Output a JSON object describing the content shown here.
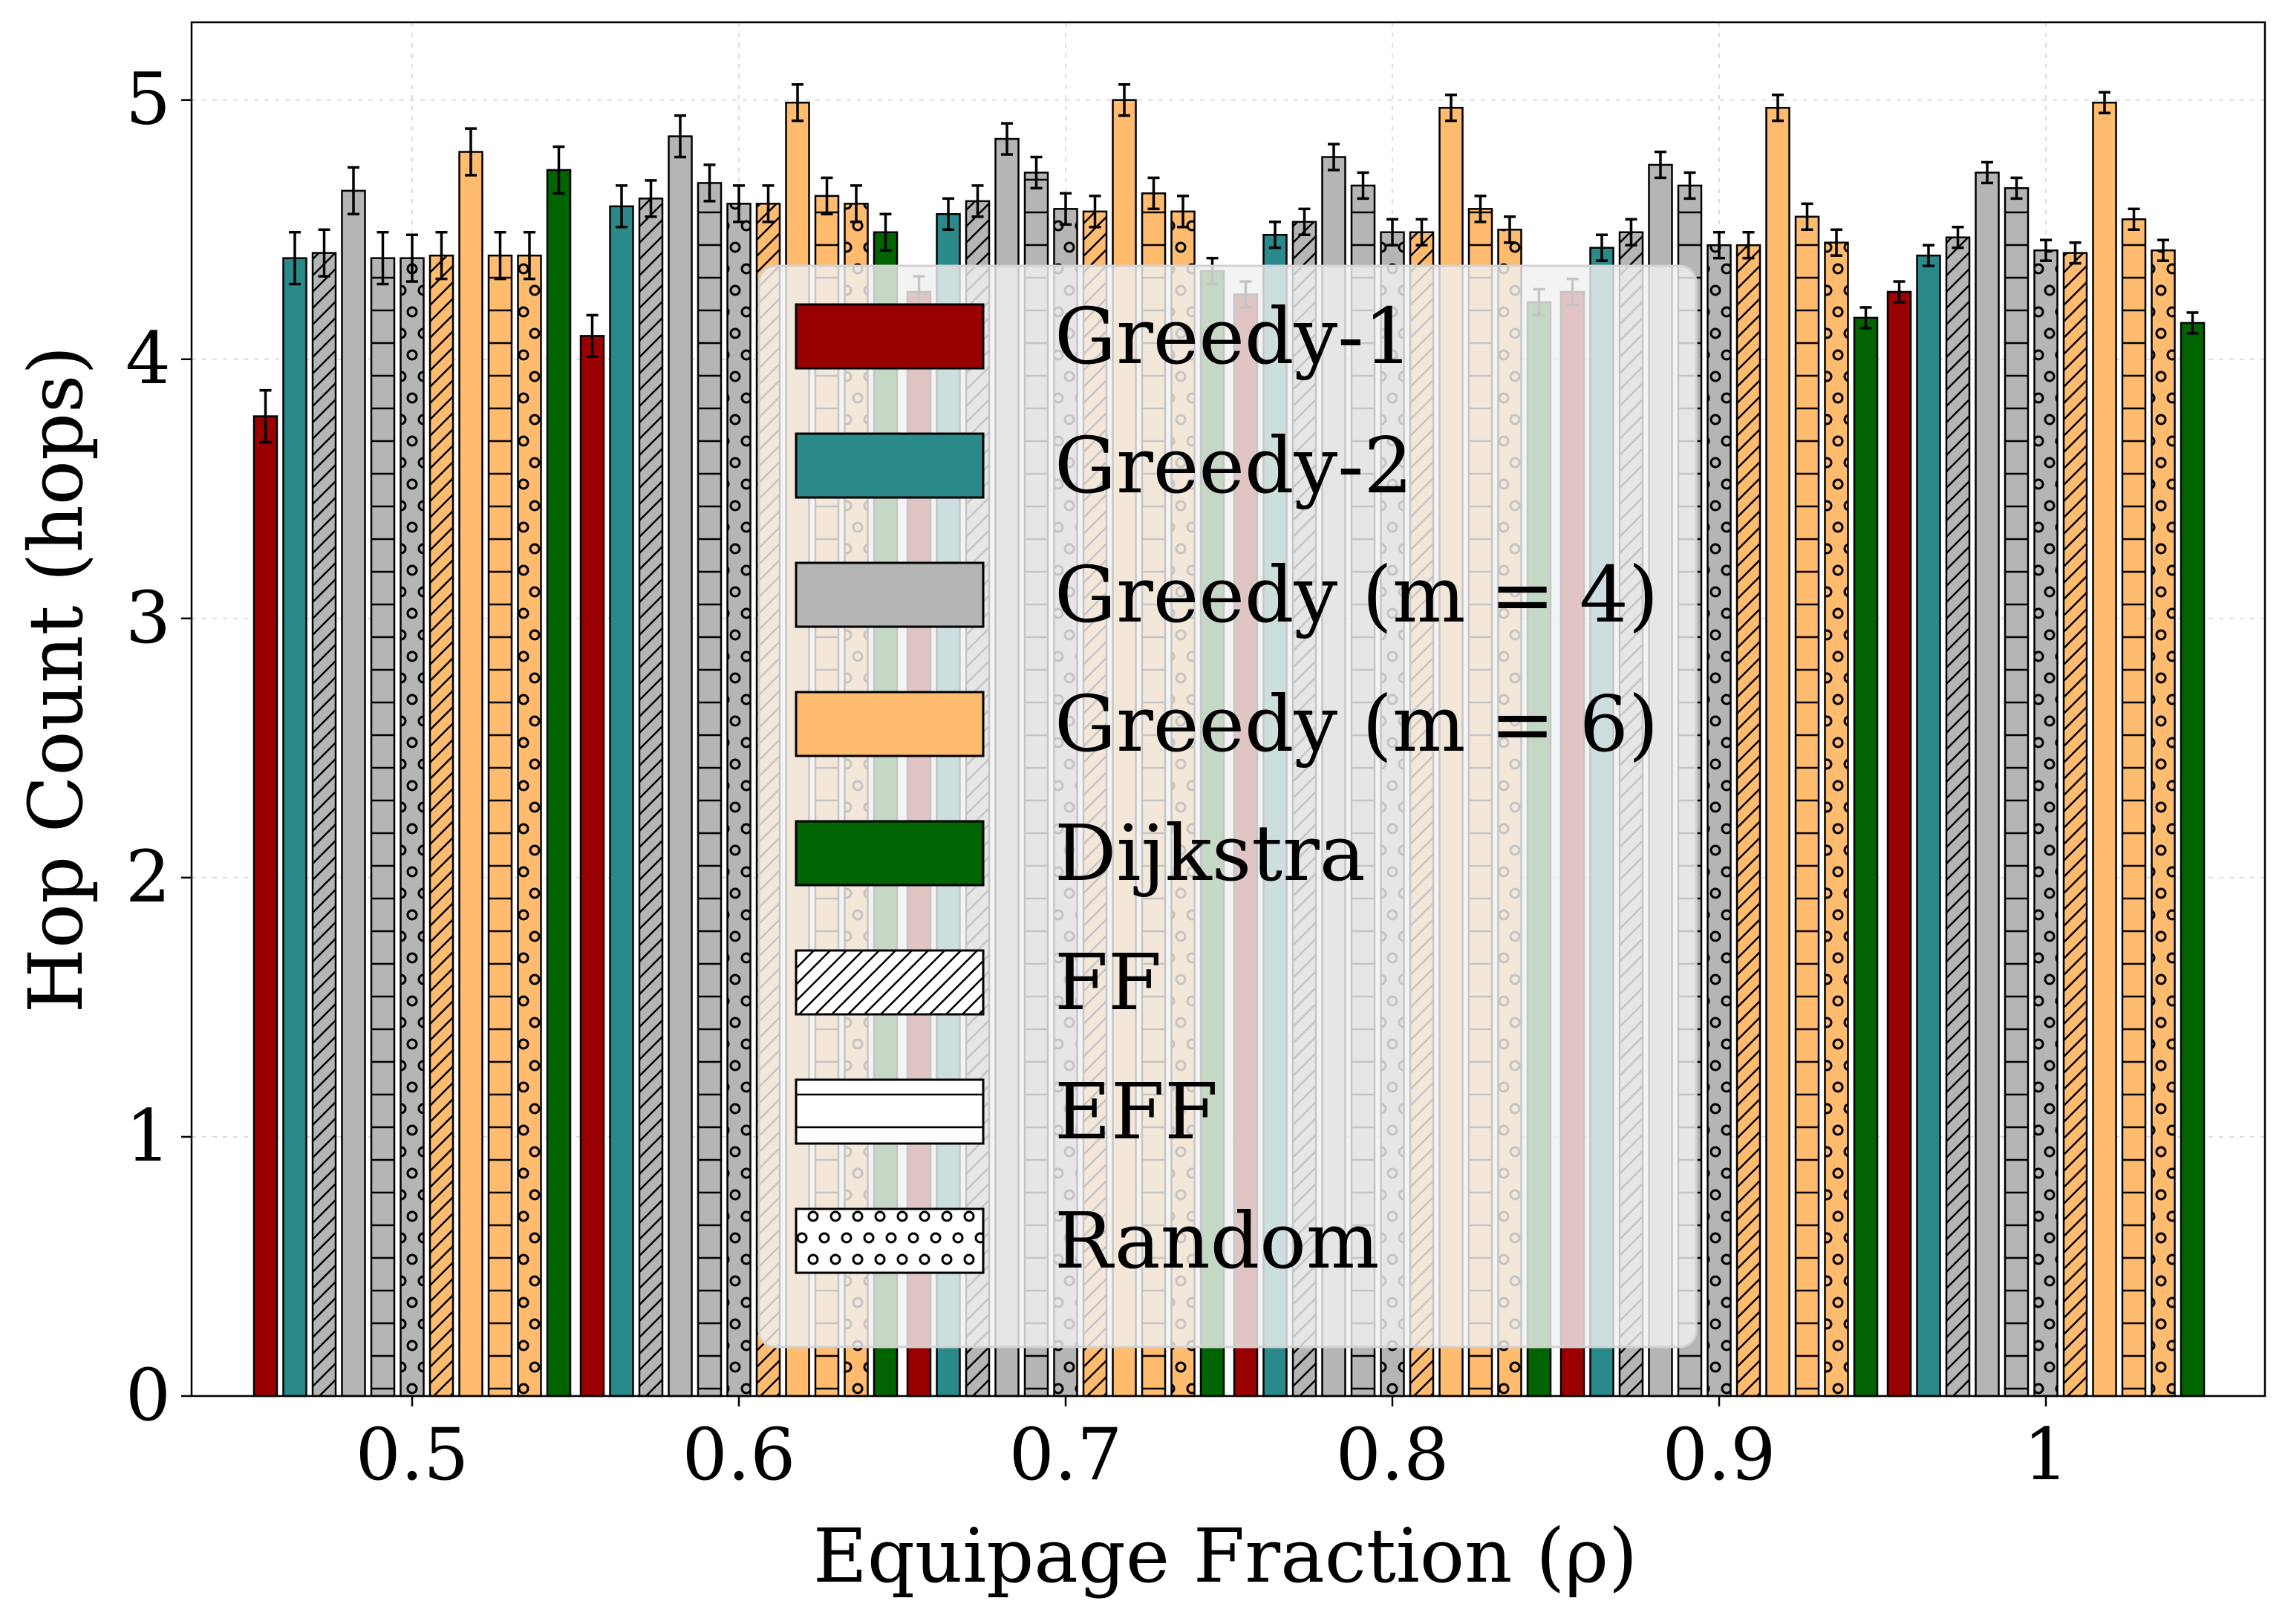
{
  "chart_data": {
    "type": "bar",
    "xlabel": "Equipage Fraction (ρ)",
    "ylabel": "Hop Count (hops)",
    "ylim": [
      0,
      5.3
    ],
    "yticks": [
      "0",
      "1",
      "2",
      "3",
      "4",
      "5"
    ],
    "categories": [
      "0.5",
      "0.6",
      "0.7",
      "0.8",
      "0.9",
      "1"
    ],
    "grid": true,
    "legend_position": "center",
    "legend": [
      {
        "label": "Greedy-1",
        "color": "#9b0000",
        "hatch": "none"
      },
      {
        "label": "Greedy-2",
        "color": "#2a8a8a",
        "hatch": "none"
      },
      {
        "label": "Greedy (m = 4)",
        "color": "#b5b5b5",
        "hatch": "none"
      },
      {
        "label": "Greedy (m = 6)",
        "color": "#ffbb6e",
        "hatch": "none"
      },
      {
        "label": "Dijkstra",
        "color": "#006400",
        "hatch": "none"
      },
      {
        "label": "FF",
        "color": "#ffffff",
        "hatch": "diag"
      },
      {
        "label": "EFF",
        "color": "#ffffff",
        "hatch": "horiz"
      },
      {
        "label": "Random",
        "color": "#ffffff",
        "hatch": "dots"
      }
    ],
    "series": [
      {
        "name": "Greedy-1",
        "color": "#9b0000",
        "hatch": "none",
        "values": [
          3.78,
          4.09,
          4.26,
          4.25,
          4.26,
          4.26
        ],
        "errors": [
          0.1,
          0.08,
          0.06,
          0.05,
          0.05,
          0.04
        ]
      },
      {
        "name": "Greedy-2",
        "color": "#2a8a8a",
        "hatch": "none",
        "values": [
          4.39,
          4.59,
          4.56,
          4.48,
          4.43,
          4.4
        ],
        "errors": [
          0.1,
          0.08,
          0.06,
          0.05,
          0.05,
          0.04
        ]
      },
      {
        "name": "Greedy-2, FF",
        "color": "#b5b5b5",
        "hatch": "diag",
        "values": [
          4.41,
          4.62,
          4.61,
          4.53,
          4.49,
          4.47
        ],
        "errors": [
          0.09,
          0.07,
          0.06,
          0.05,
          0.05,
          0.04
        ]
      },
      {
        "name": "Greedy (m = 4)",
        "color": "#b5b5b5",
        "hatch": "none",
        "values": [
          4.65,
          4.86,
          4.85,
          4.78,
          4.75,
          4.72
        ],
        "errors": [
          0.09,
          0.08,
          0.06,
          0.05,
          0.05,
          0.04
        ]
      },
      {
        "name": "Greedy (m = 4), EFF",
        "color": "#b5b5b5",
        "hatch": "horiz",
        "values": [
          4.39,
          4.68,
          4.72,
          4.67,
          4.67,
          4.66
        ],
        "errors": [
          0.1,
          0.07,
          0.06,
          0.05,
          0.05,
          0.04
        ]
      },
      {
        "name": "Greedy (m = 4), Random",
        "color": "#b5b5b5",
        "hatch": "dots",
        "values": [
          4.39,
          4.6,
          4.58,
          4.49,
          4.44,
          4.42
        ],
        "errors": [
          0.09,
          0.07,
          0.06,
          0.05,
          0.05,
          0.04
        ]
      },
      {
        "name": "Greedy (m = 6), FF",
        "color": "#ffbb6e",
        "hatch": "diag",
        "values": [
          4.4,
          4.6,
          4.57,
          4.49,
          4.44,
          4.41
        ],
        "errors": [
          0.09,
          0.07,
          0.06,
          0.05,
          0.05,
          0.04
        ]
      },
      {
        "name": "Greedy (m = 6)",
        "color": "#ffbb6e",
        "hatch": "none",
        "values": [
          4.8,
          4.99,
          5.0,
          4.97,
          4.97,
          4.99
        ],
        "errors": [
          0.09,
          0.07,
          0.06,
          0.05,
          0.05,
          0.04
        ]
      },
      {
        "name": "Greedy (m = 6), EFF",
        "color": "#ffbb6e",
        "hatch": "horiz",
        "values": [
          4.4,
          4.63,
          4.64,
          4.58,
          4.55,
          4.54
        ],
        "errors": [
          0.09,
          0.07,
          0.06,
          0.05,
          0.05,
          0.04
        ]
      },
      {
        "name": "Greedy (m = 6), Random",
        "color": "#ffbb6e",
        "hatch": "dots",
        "values": [
          4.4,
          4.6,
          4.57,
          4.5,
          4.45,
          4.42
        ],
        "errors": [
          0.09,
          0.07,
          0.06,
          0.05,
          0.05,
          0.04
        ]
      },
      {
        "name": "Dijkstra",
        "color": "#006400",
        "hatch": "none",
        "values": [
          4.73,
          4.49,
          4.34,
          4.22,
          4.16,
          4.14
        ],
        "errors": [
          0.09,
          0.07,
          0.05,
          0.05,
          0.04,
          0.04
        ]
      }
    ]
  }
}
